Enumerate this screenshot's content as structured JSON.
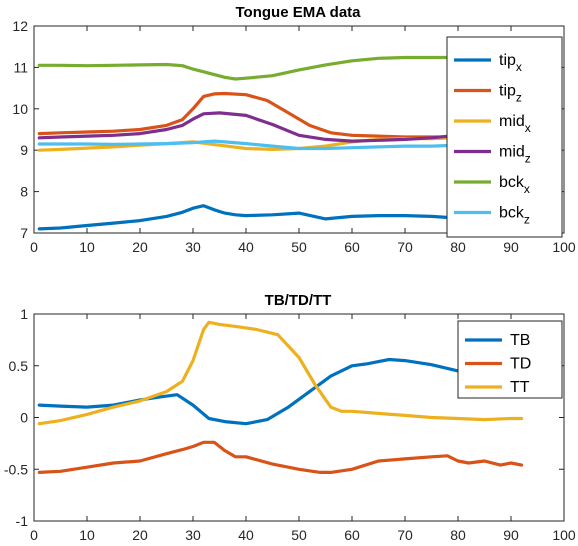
{
  "figure": {
    "background": "#ffffff"
  },
  "chart_data": [
    {
      "type": "line",
      "title": "Tongue EMA data",
      "xlabel": "",
      "ylabel": "",
      "xlim": [
        0,
        100
      ],
      "ylim": [
        7,
        12
      ],
      "xticks": [
        "0",
        "10",
        "20",
        "30",
        "40",
        "50",
        "60",
        "70",
        "80",
        "90",
        "100"
      ],
      "yticks": [
        "7",
        "8",
        "9",
        "10",
        "11",
        "12"
      ],
      "grid": false,
      "legend": {
        "position": "top-right",
        "entries": [
          {
            "base": "tip",
            "sub": "x"
          },
          {
            "base": "tip",
            "sub": "z"
          },
          {
            "base": "mid",
            "sub": "x"
          },
          {
            "base": "mid",
            "sub": "z"
          },
          {
            "base": "bck",
            "sub": "x"
          },
          {
            "base": "bck",
            "sub": "z"
          }
        ]
      },
      "series": [
        {
          "color": "#0072BD",
          "x": [
            1,
            5,
            10,
            15,
            20,
            25,
            28,
            30,
            32,
            34,
            36,
            38,
            40,
            45,
            50,
            55,
            60,
            65,
            70,
            75,
            80,
            85,
            90,
            92
          ],
          "y": [
            7.1,
            7.12,
            7.18,
            7.24,
            7.3,
            7.4,
            7.5,
            7.6,
            7.66,
            7.56,
            7.48,
            7.44,
            7.42,
            7.44,
            7.48,
            7.34,
            7.4,
            7.42,
            7.42,
            7.4,
            7.36,
            7.34,
            7.34,
            7.34
          ]
        },
        {
          "color": "#D95319",
          "x": [
            1,
            5,
            10,
            15,
            20,
            25,
            28,
            30,
            32,
            34,
            36,
            40,
            44,
            48,
            52,
            56,
            60,
            65,
            70,
            75,
            80,
            85,
            90,
            92
          ],
          "y": [
            9.4,
            9.42,
            9.44,
            9.46,
            9.5,
            9.6,
            9.74,
            10,
            10.3,
            10.36,
            10.37,
            10.34,
            10.2,
            9.9,
            9.6,
            9.42,
            9.36,
            9.34,
            9.32,
            9.32,
            9.32,
            9.34,
            9.34,
            9.34
          ]
        },
        {
          "color": "#EDB120",
          "x": [
            1,
            5,
            10,
            15,
            20,
            25,
            30,
            35,
            40,
            45,
            50,
            55,
            60,
            65,
            70,
            75,
            80,
            85,
            90,
            92
          ],
          "y": [
            9.0,
            9.02,
            9.05,
            9.08,
            9.12,
            9.16,
            9.2,
            9.12,
            9.04,
            9.02,
            9.04,
            9.1,
            9.2,
            9.26,
            9.28,
            9.28,
            9.3,
            9.3,
            9.3,
            9.3
          ]
        },
        {
          "color": "#7E2F8E",
          "x": [
            1,
            5,
            10,
            15,
            20,
            25,
            28,
            30,
            32,
            35,
            40,
            45,
            50,
            55,
            60,
            65,
            70,
            75,
            80,
            85,
            90,
            92
          ],
          "y": [
            9.3,
            9.32,
            9.34,
            9.36,
            9.4,
            9.5,
            9.6,
            9.75,
            9.88,
            9.9,
            9.84,
            9.62,
            9.36,
            9.26,
            9.22,
            9.24,
            9.26,
            9.3,
            9.36,
            9.4,
            9.42,
            9.42
          ]
        },
        {
          "color": "#77AC30",
          "x": [
            1,
            5,
            10,
            15,
            20,
            25,
            28,
            30,
            33,
            36,
            38,
            40,
            45,
            50,
            55,
            60,
            65,
            70,
            75,
            80,
            85,
            90,
            92
          ],
          "y": [
            11.05,
            11.05,
            11.04,
            11.05,
            11.06,
            11.07,
            11.04,
            10.96,
            10.86,
            10.76,
            10.72,
            10.74,
            10.8,
            10.94,
            11.06,
            11.16,
            11.22,
            11.24,
            11.24,
            11.24,
            11.22,
            11.22,
            11.22
          ]
        },
        {
          "color": "#4DBEEE",
          "x": [
            1,
            5,
            10,
            15,
            20,
            25,
            30,
            32,
            34,
            36,
            40,
            45,
            50,
            55,
            60,
            65,
            70,
            75,
            80,
            85,
            90,
            92
          ],
          "y": [
            9.15,
            9.15,
            9.15,
            9.14,
            9.15,
            9.16,
            9.18,
            9.2,
            9.22,
            9.2,
            9.16,
            9.1,
            9.04,
            9.04,
            9.06,
            9.08,
            9.1,
            9.1,
            9.12,
            9.14,
            9.15,
            9.15
          ]
        }
      ]
    },
    {
      "type": "line",
      "title": "TB/TD/TT",
      "xlabel": "",
      "ylabel": "",
      "xlim": [
        0,
        100
      ],
      "ylim": [
        -1,
        1
      ],
      "xticks": [
        "0",
        "10",
        "20",
        "30",
        "40",
        "50",
        "60",
        "70",
        "80",
        "90",
        "100"
      ],
      "yticks": [
        "-1",
        "-0.5",
        "0",
        "0.5",
        "1"
      ],
      "grid": false,
      "legend": {
        "position": "top-right",
        "entries": [
          {
            "base": "TB",
            "sub": ""
          },
          {
            "base": "TD",
            "sub": ""
          },
          {
            "base": "TT",
            "sub": ""
          }
        ]
      },
      "series": [
        {
          "color": "#0072BD",
          "x": [
            1,
            5,
            10,
            15,
            20,
            24,
            27,
            30,
            33,
            36,
            40,
            44,
            48,
            52,
            56,
            60,
            63,
            67,
            70,
            75,
            80,
            82
          ],
          "y": [
            0.12,
            0.11,
            0.1,
            0.12,
            0.17,
            0.2,
            0.22,
            0.12,
            -0.01,
            -0.04,
            -0.06,
            -0.02,
            0.1,
            0.25,
            0.4,
            0.5,
            0.52,
            0.56,
            0.55,
            0.51,
            0.45,
            0.42
          ]
        },
        {
          "color": "#D95319",
          "x": [
            1,
            5,
            10,
            15,
            20,
            25,
            28,
            30,
            32,
            34,
            36,
            38,
            40,
            45,
            50,
            54,
            56,
            60,
            65,
            70,
            75,
            78,
            80,
            82,
            85,
            88,
            90,
            92
          ],
          "y": [
            -0.53,
            -0.52,
            -0.48,
            -0.44,
            -0.42,
            -0.35,
            -0.31,
            -0.28,
            -0.24,
            -0.24,
            -0.32,
            -0.38,
            -0.38,
            -0.45,
            -0.5,
            -0.53,
            -0.53,
            -0.5,
            -0.42,
            -0.4,
            -0.38,
            -0.37,
            -0.42,
            -0.44,
            -0.42,
            -0.46,
            -0.44,
            -0.46
          ]
        },
        {
          "color": "#EDB120",
          "x": [
            1,
            5,
            10,
            15,
            20,
            25,
            28,
            30,
            32,
            33,
            35,
            38,
            42,
            46,
            50,
            53,
            56,
            58,
            60,
            65,
            70,
            75,
            80,
            85,
            90,
            92
          ],
          "y": [
            -0.06,
            -0.03,
            0.03,
            0.1,
            0.16,
            0.25,
            0.35,
            0.55,
            0.85,
            0.92,
            0.9,
            0.88,
            0.85,
            0.8,
            0.58,
            0.32,
            0.1,
            0.06,
            0.06,
            0.04,
            0.02,
            0.0,
            -0.01,
            -0.02,
            -0.01,
            -0.01
          ]
        }
      ]
    }
  ]
}
